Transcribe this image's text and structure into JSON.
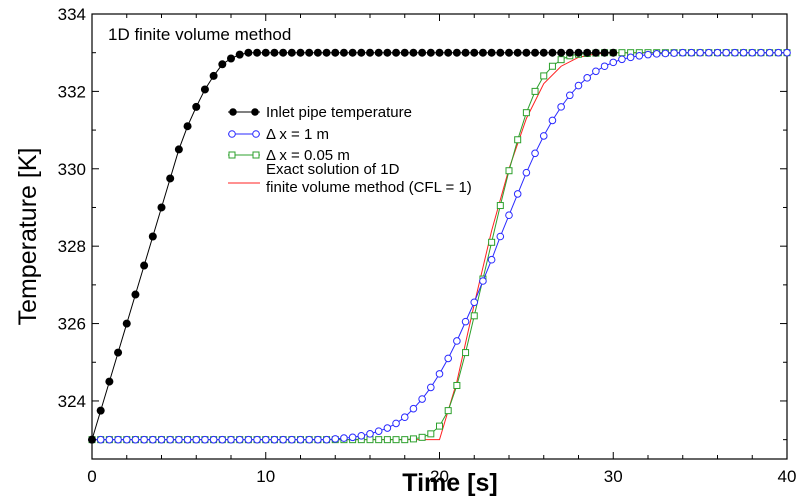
{
  "chart_data": {
    "type": "line",
    "title": "1D finite volume method",
    "xlabel": "Time  [s]",
    "ylabel": "Temperature [K]",
    "xlim": [
      0,
      40
    ],
    "ylim": [
      322.5,
      334
    ],
    "xticks": [
      0,
      10,
      20,
      30,
      40
    ],
    "yticks": [
      324,
      326,
      328,
      330,
      332,
      334
    ],
    "grid": false,
    "legend_position": "center-left",
    "series": [
      {
        "name": "Inlet pipe temperature",
        "color": "#000000",
        "marker": "filled-circle",
        "x": [
          0.0,
          0.5,
          1.0,
          1.5,
          2.0,
          2.5,
          3.0,
          3.5,
          4.0,
          4.5,
          5.0,
          5.5,
          6.0,
          6.5,
          7.0,
          7.5,
          8.0,
          8.5,
          9.0,
          9.5,
          10.0,
          10.5,
          11.0,
          11.5,
          12.0,
          12.5,
          13.0,
          13.5,
          14.0,
          14.5,
          15.0,
          15.5,
          16.0,
          16.5,
          17.0,
          17.5,
          18.0,
          18.5,
          19.0,
          19.5,
          20.0,
          20.5,
          21.0,
          21.5,
          22.0,
          22.5,
          23.0,
          23.5,
          24.0,
          24.5,
          25.0,
          25.5,
          26.0,
          26.5,
          27.0,
          27.5,
          28.0,
          28.5,
          29.0,
          29.5,
          30.0
        ],
        "y": [
          323.0,
          323.75,
          324.5,
          325.25,
          326.0,
          326.75,
          327.5,
          328.25,
          329.0,
          329.75,
          330.5,
          331.1,
          331.6,
          332.05,
          332.4,
          332.7,
          332.85,
          332.95,
          333.0,
          333.0,
          333.0,
          333.0,
          333.0,
          333.0,
          333.0,
          333.0,
          333.0,
          333.0,
          333.0,
          333.0,
          333.0,
          333.0,
          333.0,
          333.0,
          333.0,
          333.0,
          333.0,
          333.0,
          333.0,
          333.0,
          333.0,
          333.0,
          333.0,
          333.0,
          333.0,
          333.0,
          333.0,
          333.0,
          333.0,
          333.0,
          333.0,
          333.0,
          333.0,
          333.0,
          333.0,
          333.0,
          333.0,
          333.0,
          333.0,
          333.0,
          333.0
        ]
      },
      {
        "name": "Δ x = 1 m",
        "color": "#2a2aff",
        "marker": "open-circle",
        "x": [
          0,
          0.5,
          1,
          1.5,
          2,
          2.5,
          3,
          3.5,
          4,
          4.5,
          5,
          5.5,
          6,
          6.5,
          7,
          7.5,
          8,
          8.5,
          9,
          9.5,
          10,
          10.5,
          11,
          11.5,
          12,
          12.5,
          13,
          13.5,
          14,
          14.5,
          15,
          15.5,
          16,
          16.5,
          17,
          17.5,
          18,
          18.5,
          19,
          19.5,
          20,
          20.5,
          21,
          21.5,
          22,
          22.5,
          23,
          23.5,
          24,
          24.5,
          25,
          25.5,
          26,
          26.5,
          27,
          27.5,
          28,
          28.5,
          29,
          29.5,
          30,
          30.5,
          31,
          31.5,
          32,
          32.5,
          33,
          33.5,
          34,
          34.5,
          35,
          35.5,
          36,
          36.5,
          37,
          37.5,
          38,
          38.5,
          39,
          39.5,
          40
        ],
        "y": [
          323.0,
          323.0,
          323.0,
          323.0,
          323.0,
          323.0,
          323.0,
          323.0,
          323.0,
          323.0,
          323.0,
          323.0,
          323.0,
          323.0,
          323.0,
          323.0,
          323.0,
          323.0,
          323.0,
          323.0,
          323.0,
          323.0,
          323.0,
          323.0,
          323.0,
          323.0,
          323.0,
          323.0,
          323.02,
          323.04,
          323.06,
          323.1,
          323.15,
          323.22,
          323.3,
          323.42,
          323.58,
          323.8,
          324.05,
          324.35,
          324.7,
          325.1,
          325.55,
          326.05,
          326.55,
          327.1,
          327.65,
          328.25,
          328.8,
          329.35,
          329.9,
          330.4,
          330.85,
          331.25,
          331.6,
          331.9,
          332.15,
          332.35,
          332.52,
          332.65,
          332.75,
          332.83,
          332.88,
          332.92,
          332.95,
          332.97,
          332.98,
          332.99,
          333.0,
          333.0,
          333.0,
          333.0,
          333.0,
          333.0,
          333.0,
          333.0,
          333.0,
          333.0,
          333.0,
          333.0,
          333.0
        ]
      },
      {
        "name": "Δ x = 0.05 m",
        "color": "#2ca02c",
        "marker": "open-square",
        "x": [
          0,
          0.5,
          1,
          1.5,
          2,
          2.5,
          3,
          3.5,
          4,
          4.5,
          5,
          5.5,
          6,
          6.5,
          7,
          7.5,
          8,
          8.5,
          9,
          9.5,
          10,
          10.5,
          11,
          11.5,
          12,
          12.5,
          13,
          13.5,
          14,
          14.5,
          15,
          15.5,
          16,
          16.5,
          17,
          17.5,
          18,
          18.5,
          19,
          19.5,
          20,
          20.5,
          21,
          21.5,
          22,
          22.5,
          23,
          23.5,
          24,
          24.5,
          25,
          25.5,
          26,
          26.5,
          27,
          27.5,
          28,
          28.5,
          29,
          29.5,
          30,
          30.5,
          31,
          31.5,
          32,
          32.5,
          33,
          33.5,
          34,
          34.5,
          35,
          35.5,
          36,
          36.5,
          37,
          37.5,
          38,
          38.5,
          39,
          39.5,
          40
        ],
        "y": [
          323.0,
          323.0,
          323.0,
          323.0,
          323.0,
          323.0,
          323.0,
          323.0,
          323.0,
          323.0,
          323.0,
          323.0,
          323.0,
          323.0,
          323.0,
          323.0,
          323.0,
          323.0,
          323.0,
          323.0,
          323.0,
          323.0,
          323.0,
          323.0,
          323.0,
          323.0,
          323.0,
          323.0,
          323.0,
          323.0,
          323.0,
          323.0,
          323.0,
          323.0,
          323.0,
          323.0,
          323.0,
          323.02,
          323.06,
          323.15,
          323.35,
          323.75,
          324.4,
          325.25,
          326.2,
          327.15,
          328.1,
          329.05,
          329.95,
          330.75,
          331.45,
          332.0,
          332.4,
          332.65,
          332.82,
          332.92,
          332.96,
          332.98,
          332.99,
          333.0,
          333.0,
          333.0,
          333.0,
          333.0,
          333.0,
          333.0,
          333.0,
          333.0,
          333.0,
          333.0,
          333.0,
          333.0,
          333.0,
          333.0,
          333.0,
          333.0,
          333.0,
          333.0,
          333.0,
          333.0,
          333.0
        ]
      },
      {
        "name": "Exact solution of 1D\nfinite volume method (CFL = 1)",
        "color": "#ff2020",
        "marker": "none",
        "x": [
          0,
          20,
          21,
          22,
          23,
          24,
          25,
          26,
          27,
          28,
          29,
          30,
          40
        ],
        "y": [
          323.0,
          323.0,
          324.5,
          326.5,
          328.4,
          330.0,
          331.3,
          332.2,
          332.65,
          332.88,
          332.97,
          333.0,
          333.0
        ]
      }
    ]
  }
}
